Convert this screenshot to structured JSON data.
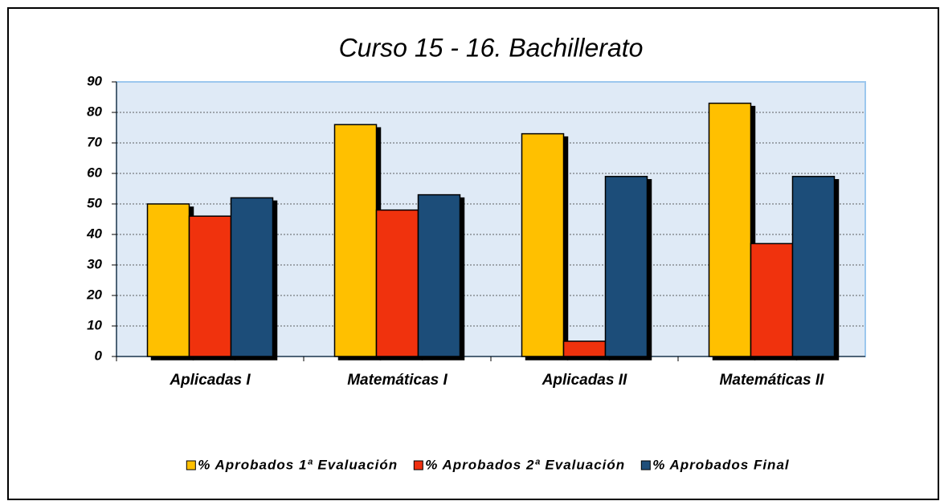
{
  "chart_data": {
    "type": "bar",
    "title": "Curso 15 - 16. Bachillerato",
    "categories": [
      "Aplicadas I",
      "Matemáticas I",
      "Aplicadas II",
      "Matemáticas II"
    ],
    "series": [
      {
        "name": "% Aprobados 1ª Evaluación",
        "color": "#ffc000",
        "values": [
          50,
          76,
          73,
          83
        ]
      },
      {
        "name": "% Aprobados 2ª Evaluación",
        "color": "#f03010",
        "values": [
          46,
          48,
          5,
          37
        ]
      },
      {
        "name": "% Aprobados Final",
        "color": "#1f4e79",
        "values": [
          52,
          53,
          59,
          59
        ]
      }
    ],
    "ylim": [
      0,
      90
    ],
    "yticks": [
      0,
      10,
      20,
      30,
      40,
      50,
      60,
      70,
      80,
      90
    ],
    "grid": true,
    "legend": "bottom"
  }
}
